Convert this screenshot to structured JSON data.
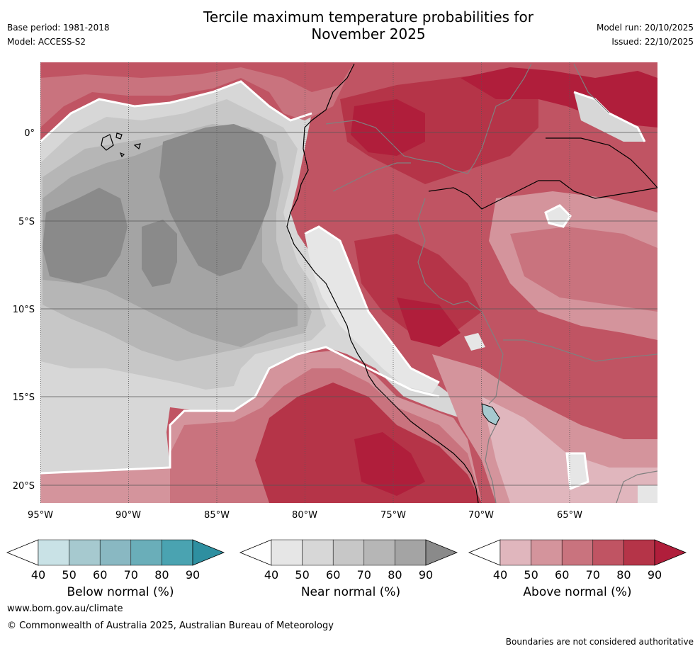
{
  "header": {
    "title_line1": "Tercile maximum temperature probabilities for",
    "title_line2": "November 2025",
    "base_period": "Base period: 1981-2018",
    "model": "Model: ACCESS-S2",
    "model_run": "Model run: 20/10/2025",
    "issued": "Issued: 22/10/2025"
  },
  "map": {
    "lon_labels": [
      "95°W",
      "90°W",
      "85°W",
      "80°W",
      "75°W",
      "70°W",
      "65°W"
    ],
    "lat_labels": [
      "0°",
      "5°S",
      "10°S",
      "15°S",
      "20°S"
    ]
  },
  "colorbars": {
    "below": {
      "title": "Below normal (%)",
      "ticks": [
        "40",
        "50",
        "60",
        "70",
        "80",
        "90"
      ],
      "colors": [
        "#c9e2e6",
        "#a6c9cf",
        "#89b8c2",
        "#6aaeb9",
        "#4aa3b1",
        "#2e8fa0"
      ]
    },
    "near": {
      "title": "Near normal (%)",
      "ticks": [
        "40",
        "50",
        "60",
        "70",
        "80",
        "90"
      ],
      "colors": [
        "#e6e6e6",
        "#d7d7d7",
        "#c7c7c7",
        "#b6b6b6",
        "#a4a4a4",
        "#8a8a8a"
      ]
    },
    "above": {
      "title": "Above normal (%)",
      "ticks": [
        "40",
        "50",
        "60",
        "70",
        "80",
        "90"
      ],
      "colors": [
        "#e0b6bd",
        "#d4949c",
        "#c9737e",
        "#c05463",
        "#b53448",
        "#b01e3b"
      ]
    }
  },
  "footer": {
    "website": "www.bom.gov.au/climate",
    "copyright": "© Commonwealth of Australia 2025, Australian Bureau of Meteorology",
    "disclaimer": "Boundaries are not considered authoritative"
  }
}
